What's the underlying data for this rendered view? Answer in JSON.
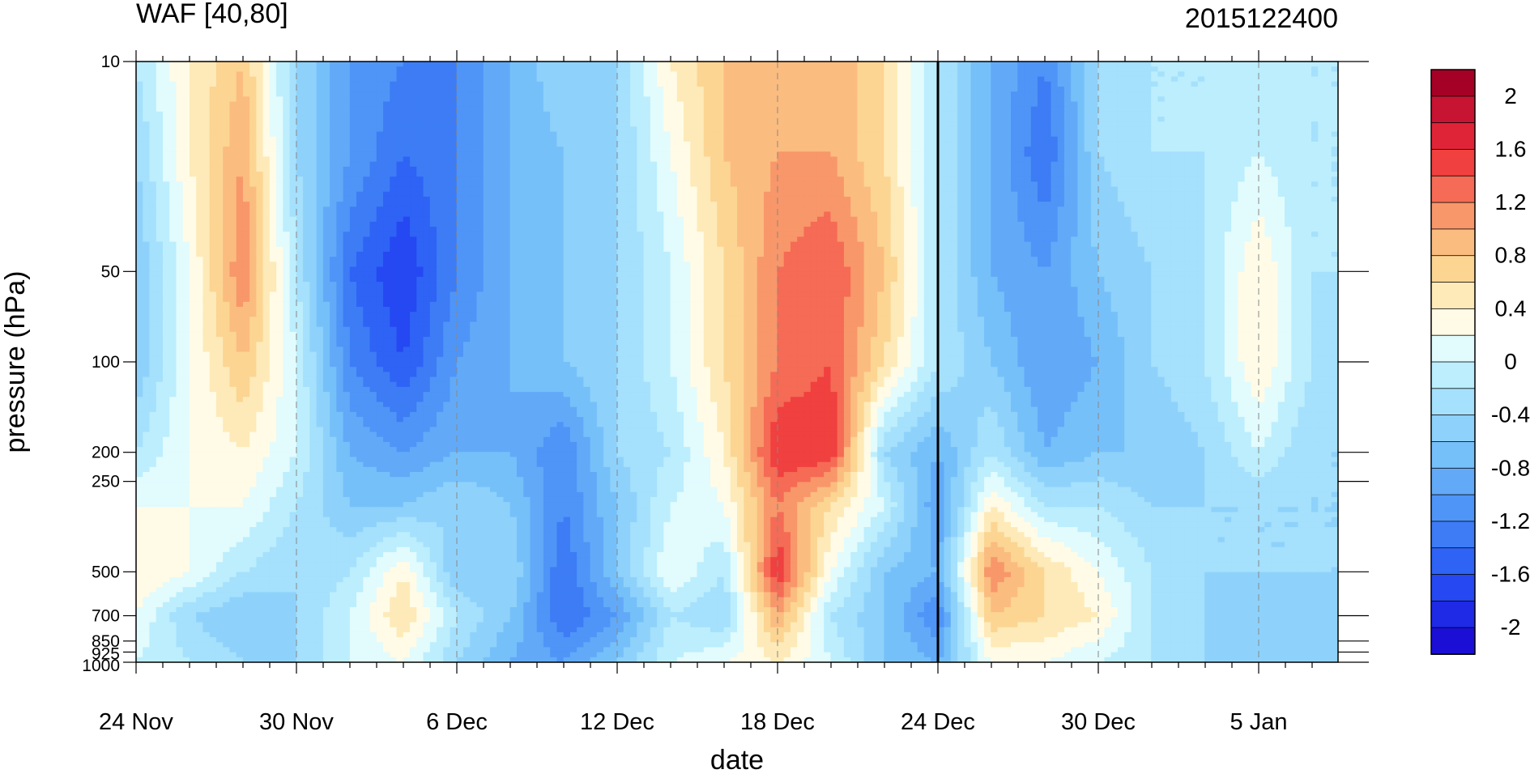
{
  "chart_data": {
    "type": "heatmap",
    "subtype": "filled-contour",
    "title": "WAF [40,80]",
    "date_stamp": "2015122400",
    "xlabel": "date",
    "ylabel": "pressure (hPa)",
    "y_scale": "log",
    "y_reversed": true,
    "ylim": [
      1000,
      10
    ],
    "x_range_days": [
      "24 Nov",
      "9 Jan"
    ],
    "x_tick_labels": [
      {
        "day": 0,
        "label": "24 Nov"
      },
      {
        "day": 6,
        "label": "30 Nov"
      },
      {
        "day": 12,
        "label": "6 Dec"
      },
      {
        "day": 18,
        "label": "12 Dec"
      },
      {
        "day": 24,
        "label": "18 Dec"
      },
      {
        "day": 30,
        "label": "24 Dec"
      },
      {
        "day": 36,
        "label": "30 Dec"
      },
      {
        "day": 42,
        "label": "5 Jan"
      }
    ],
    "y_ticks": [
      {
        "p": 10,
        "label": "10"
      },
      {
        "p": 50,
        "label": "50"
      },
      {
        "p": 100,
        "label": "100"
      },
      {
        "p": 200,
        "label": "200"
      },
      {
        "p": 250,
        "label": "250"
      },
      {
        "p": 500,
        "label": "500"
      },
      {
        "p": 700,
        "label": "700"
      },
      {
        "p": 850,
        "label": "850"
      },
      {
        "p": 925,
        "label": "925"
      },
      {
        "p": 1000,
        "label": "1000"
      }
    ],
    "vertical_marker_date": "24 Dec",
    "grid": "dashed vertical lines at labeled dates",
    "colorbar": {
      "placement": "right",
      "levels": [
        -2.2,
        -2,
        -1.8,
        -1.6,
        -1.4,
        -1.2,
        -1,
        -0.8,
        -0.6,
        -0.4,
        -0.2,
        0,
        0.2,
        0.4,
        0.6,
        0.8,
        1,
        1.2,
        1.4,
        1.6,
        1.8,
        2,
        2.2
      ],
      "colors": [
        "#1b0fd6",
        "#1e2ae6",
        "#2548f2",
        "#2e63f5",
        "#3d7cf5",
        "#4f95f7",
        "#62aaf8",
        "#76c0fa",
        "#8ed2fb",
        "#a5e0fc",
        "#bceefd",
        "#e2fbfd",
        "#fffbe6",
        "#fdeab8",
        "#fcd593",
        "#fbbc80",
        "#f8976a",
        "#f56b55",
        "#f0403f",
        "#e02438",
        "#c71432",
        "#a50026"
      ],
      "tick_labels": [
        {
          "v": 2,
          "label": "2"
        },
        {
          "v": 1.6,
          "label": "1.6"
        },
        {
          "v": 1.2,
          "label": "1.2"
        },
        {
          "v": 0.8,
          "label": "0.8"
        },
        {
          "v": 0.4,
          "label": "0.4"
        },
        {
          "v": 0,
          "label": "0"
        },
        {
          "v": -0.4,
          "label": "-0.4"
        },
        {
          "v": -0.8,
          "label": "-0.8"
        },
        {
          "v": -1.2,
          "label": "-1.2"
        },
        {
          "v": -1.6,
          "label": "-1.6"
        },
        {
          "v": -2,
          "label": "-2"
        }
      ]
    },
    "field": {
      "days": [
        0,
        2,
        4,
        6,
        8,
        10,
        12,
        14,
        16,
        18,
        20,
        22,
        24,
        26,
        28,
        30,
        32,
        34,
        36,
        38,
        40,
        42,
        44,
        45
      ],
      "pressures": [
        10,
        20,
        50,
        100,
        200,
        300,
        500,
        700,
        1000
      ],
      "values": [
        [
          -0.2,
          0.4,
          0.8,
          -0.4,
          -1.0,
          -1.2,
          -1.2,
          -0.8,
          -0.4,
          -0.4,
          0.4,
          0.8,
          0.8,
          1.0,
          0.6,
          -0.2,
          -0.8,
          -1.2,
          -0.4,
          -0.2,
          -0.2,
          -0.2,
          -0.2,
          -0.2
        ],
        [
          -0.4,
          0.4,
          1.0,
          -0.4,
          -1.0,
          -1.4,
          -1.2,
          -0.8,
          -0.6,
          -0.4,
          0.2,
          0.8,
          1.0,
          1.0,
          0.6,
          -0.2,
          -0.8,
          -1.4,
          -0.4,
          -0.2,
          -0.2,
          0.0,
          -0.2,
          -0.2
        ],
        [
          -0.6,
          0.2,
          1.2,
          -0.2,
          -1.4,
          -1.8,
          -1.2,
          -0.8,
          -0.6,
          -0.4,
          0.0,
          0.6,
          1.2,
          1.4,
          0.8,
          -0.2,
          -0.8,
          -1.0,
          -0.6,
          -0.4,
          -0.2,
          0.4,
          -0.2,
          -0.2
        ],
        [
          -0.6,
          0.2,
          0.8,
          0.0,
          -1.2,
          -1.6,
          -1.0,
          -0.8,
          -0.6,
          -0.4,
          0.0,
          0.6,
          1.2,
          1.4,
          0.6,
          -0.2,
          -0.6,
          -1.0,
          -0.8,
          -0.4,
          -0.2,
          0.4,
          -0.2,
          -0.4
        ],
        [
          -0.2,
          0.2,
          0.4,
          0.0,
          -0.8,
          -1.0,
          -0.8,
          -0.8,
          -1.2,
          -0.4,
          -0.2,
          0.4,
          1.6,
          1.6,
          -0.4,
          -0.8,
          -0.2,
          -0.8,
          -0.6,
          -0.6,
          -0.4,
          0.0,
          -0.4,
          -0.4
        ],
        [
          0.2,
          0.2,
          0.2,
          -0.2,
          -0.6,
          -0.6,
          -0.4,
          -0.6,
          -1.2,
          -0.6,
          0.0,
          0.2,
          1.2,
          0.6,
          0.0,
          -1.0,
          0.4,
          -0.2,
          -0.2,
          -0.4,
          -0.4,
          -0.4,
          -0.4,
          -0.4
        ],
        [
          0.4,
          0.2,
          -0.2,
          -0.4,
          -0.2,
          0.4,
          -0.6,
          -0.4,
          -1.4,
          -0.6,
          0.2,
          -0.2,
          1.6,
          0.2,
          -0.6,
          -0.8,
          1.2,
          0.6,
          0.2,
          -0.2,
          -0.4,
          -0.4,
          -0.4,
          -0.4
        ],
        [
          0.2,
          -0.4,
          -0.6,
          -0.4,
          0.0,
          0.6,
          -0.2,
          -0.6,
          -1.4,
          -1.0,
          -0.2,
          -0.4,
          1.0,
          -0.2,
          -0.6,
          -1.2,
          0.8,
          0.6,
          0.4,
          -0.2,
          -0.4,
          -0.6,
          -0.6,
          -0.4
        ],
        [
          0.0,
          -0.2,
          -0.4,
          -0.4,
          0.0,
          0.2,
          -0.4,
          -0.8,
          -1.0,
          -0.6,
          0.0,
          0.2,
          0.4,
          0.0,
          -0.6,
          -0.8,
          0.2,
          0.2,
          0.0,
          -0.2,
          -0.4,
          -0.6,
          -0.4,
          -0.4
        ]
      ]
    }
  }
}
